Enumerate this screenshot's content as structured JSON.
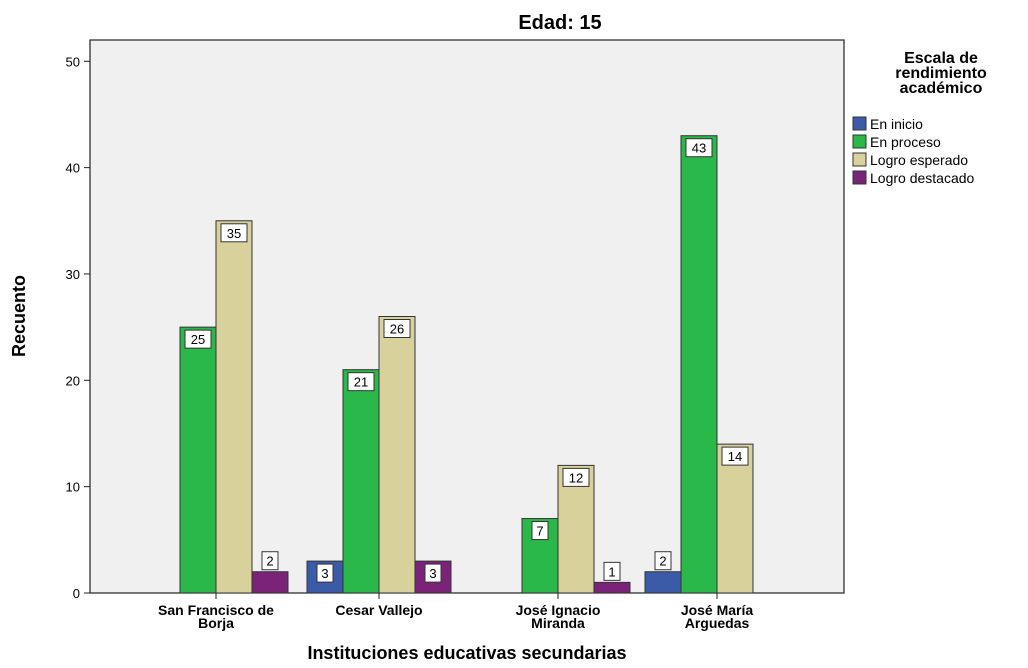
{
  "chart_data": {
    "type": "bar",
    "title": "Edad: 15",
    "xlabel": "Instituciones educativas secundarias",
    "ylabel": "Recuento",
    "ylim": [
      0,
      52
    ],
    "yticks": [
      0,
      10,
      20,
      30,
      40,
      50
    ],
    "grid": false,
    "legend_position": "right",
    "legend_title": [
      "Escala de",
      "rendimiento",
      "académico"
    ],
    "categories": [
      [
        "San Francisco de",
        "Borja"
      ],
      [
        "Cesar Vallejo"
      ],
      [
        "José Ignacio",
        "Miranda"
      ],
      [
        "José María",
        "Arguedas"
      ]
    ],
    "series": [
      {
        "name": "En inicio",
        "color": "#3b5ba8",
        "values": [
          null,
          3,
          null,
          2
        ]
      },
      {
        "name": "En proceso",
        "color": "#2bb84a",
        "values": [
          25,
          21,
          7,
          43
        ]
      },
      {
        "name": "Logro esperado",
        "color": "#d8d19b",
        "values": [
          35,
          26,
          12,
          14
        ]
      },
      {
        "name": "Logro destacado",
        "color": "#7a2379",
        "values": [
          2,
          3,
          1,
          null
        ]
      }
    ],
    "plot_background": "#f0f0f0"
  }
}
